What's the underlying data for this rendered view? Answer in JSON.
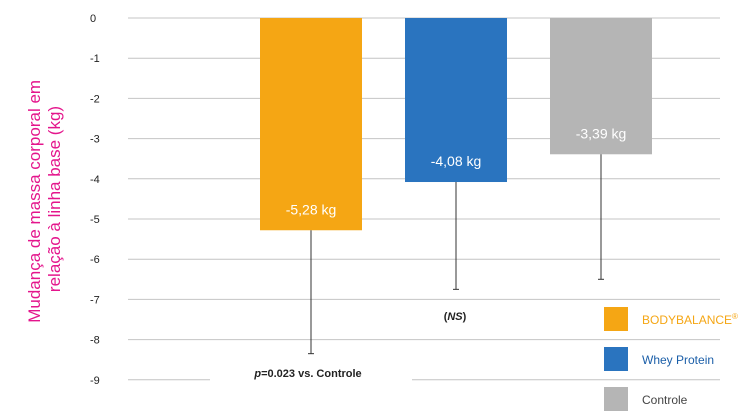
{
  "chart_data": {
    "type": "bar",
    "title": "",
    "xlabel": "",
    "ylabel": "Mudança de massa corporal em relação à linha base (kg)",
    "ylabel_lines": [
      "Mudança de massa corporal em",
      "relação à linha base (kg)"
    ],
    "ylim": [
      -9,
      0
    ],
    "yticks": [
      0,
      -1,
      -2,
      -3,
      -4,
      -5,
      -6,
      -7,
      -8,
      -9
    ],
    "grid": true,
    "legend_position": "bottom-right",
    "categories": [
      "BODYBALANCE",
      "Whey Protein",
      "Controle"
    ],
    "values": [
      -5.28,
      -4.08,
      -3.39
    ],
    "error_low": [
      -8.35,
      -6.75,
      -6.5
    ],
    "data_labels": [
      "-5,28 kg",
      "-4,08 kg",
      "-3,39 kg"
    ],
    "colors": [
      "#f5a614",
      "#2a74bf",
      "#b5b5b5"
    ],
    "legend": [
      {
        "label": "BODYBALANCE",
        "sup": "®",
        "color": "#f5a614",
        "text_color": "#f5a614"
      },
      {
        "label": "Whey Protein",
        "color": "#2a74bf",
        "text_color": "#1a5ea8"
      },
      {
        "label": "Controle",
        "color": "#b5b5b5",
        "text_color": "#444444"
      }
    ],
    "annotations": {
      "ns": {
        "open": "(",
        "italic": "NS",
        "close": ")"
      },
      "pvalue": {
        "italic": "p",
        "rest": "=0.023 vs. Controle"
      }
    }
  }
}
